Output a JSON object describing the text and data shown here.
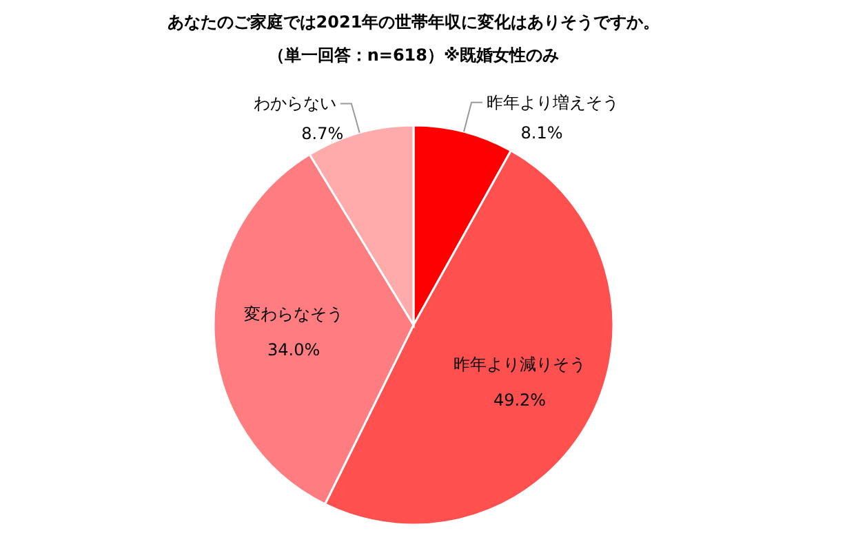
{
  "chart_data": {
    "type": "pie",
    "title": "あなたのご家庭では2021年の世帯年収に変化はありそうですか。",
    "subtitle": "（単一回答：n=618）※既婚女性のみ",
    "categories": [
      "昨年より増えそう",
      "昨年より減りそう",
      "変わらなそう",
      "わからない"
    ],
    "values": [
      8.1,
      49.2,
      34.0,
      8.7
    ],
    "colors": [
      "#ff0000",
      "#ff5050",
      "#ff7c80",
      "#ffabab"
    ],
    "value_labels": [
      "8.1%",
      "49.2%",
      "34.0%",
      "8.7%"
    ]
  }
}
